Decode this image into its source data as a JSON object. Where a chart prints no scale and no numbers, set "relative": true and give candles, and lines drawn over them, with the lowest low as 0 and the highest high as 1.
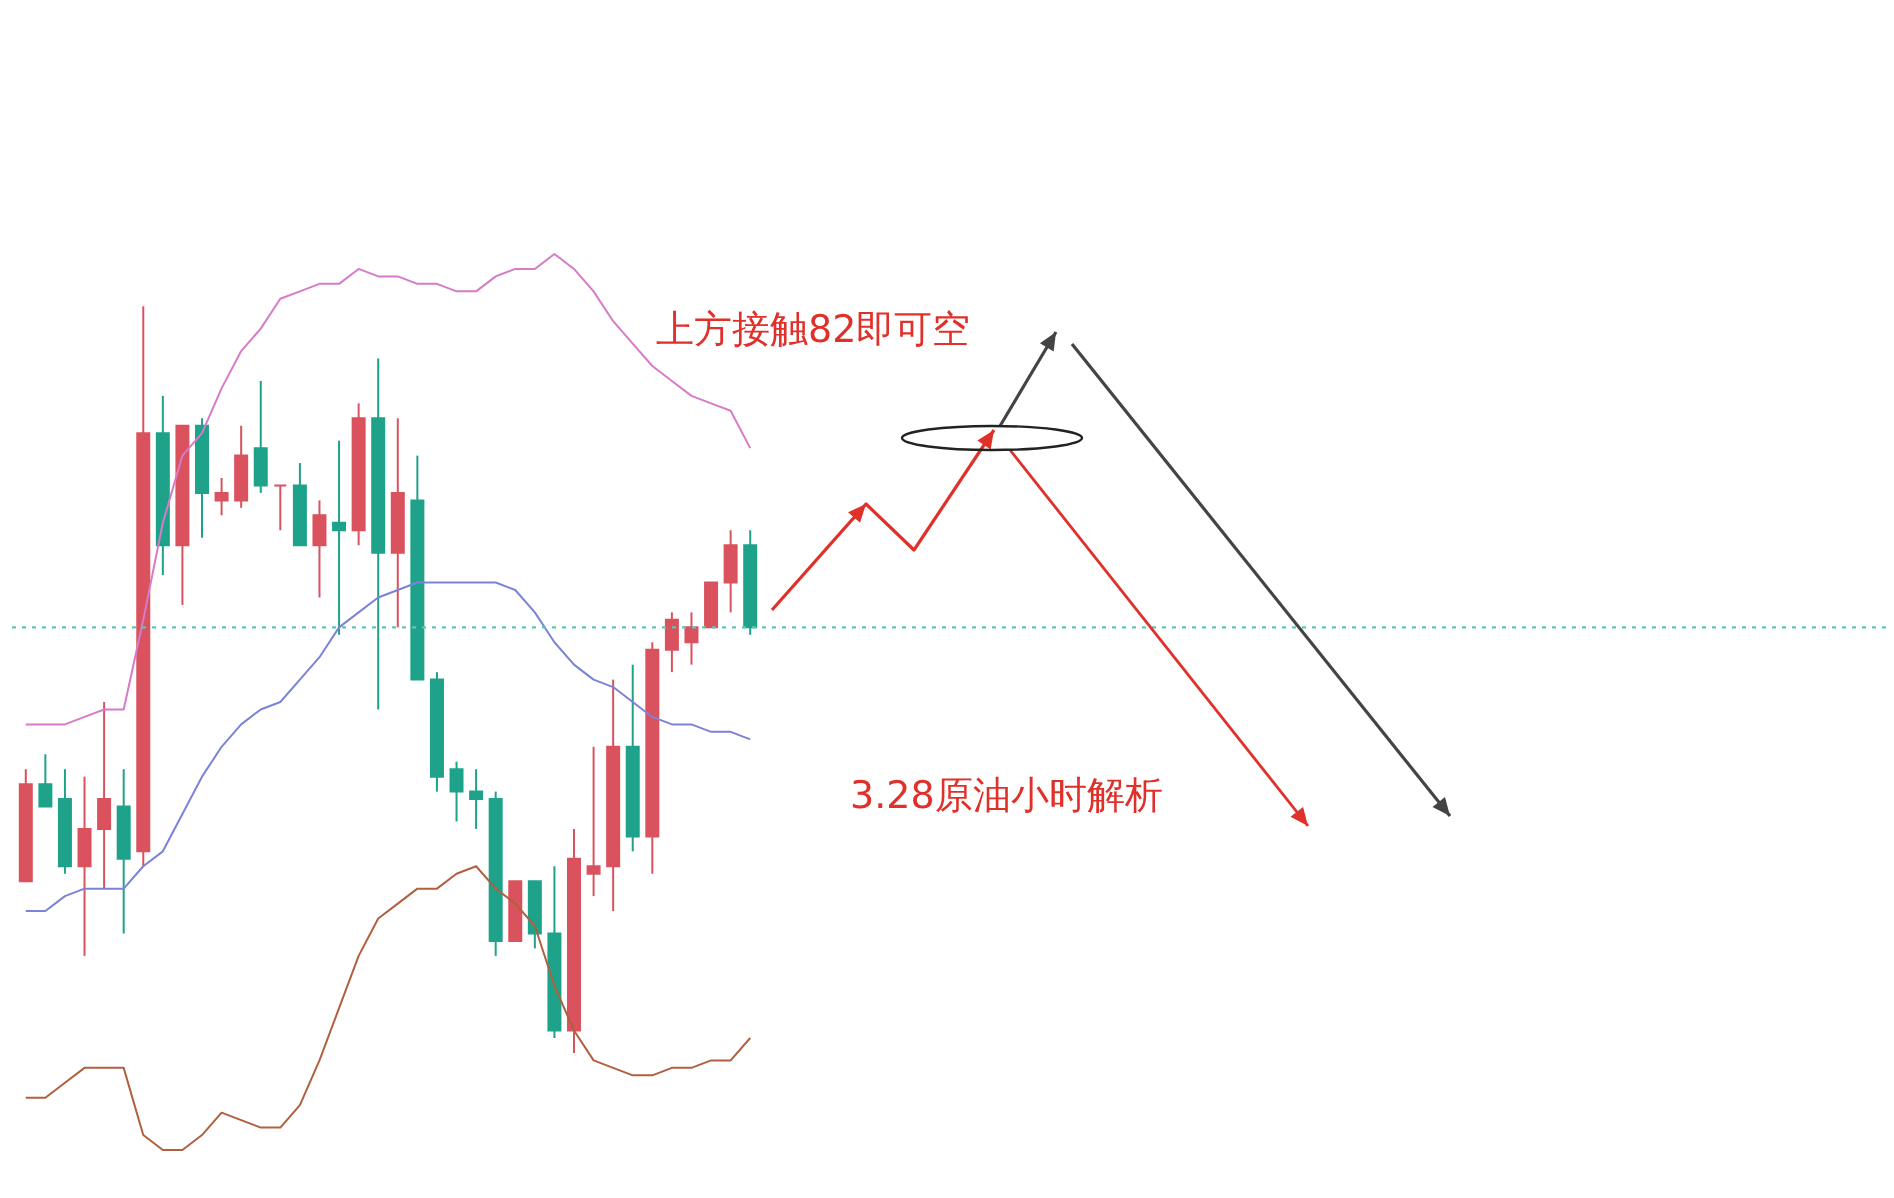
{
  "chart_data": {
    "type": "candlestick",
    "relative": true,
    "annotations": [
      "上方接触82即可空",
      "3.28原油小时解析"
    ],
    "categories": [
      null,
      null,
      null,
      null,
      null,
      null,
      null,
      null,
      null,
      null,
      null,
      null,
      null,
      null,
      null,
      null,
      null,
      null,
      null,
      null,
      null,
      null,
      null,
      null,
      null,
      null,
      null,
      null,
      null,
      null,
      null,
      null,
      null,
      null,
      null,
      null,
      null,
      null
    ],
    "ohlc": [
      [
        0.23,
        0.38,
        0.23,
        0.36
      ],
      [
        0.36,
        0.4,
        0.33,
        0.33
      ],
      [
        0.34,
        0.38,
        0.24,
        0.25
      ],
      [
        0.25,
        0.37,
        0.13,
        0.3
      ],
      [
        0.3,
        0.47,
        0.22,
        0.34
      ],
      [
        0.33,
        0.38,
        0.16,
        0.26
      ],
      [
        0.27,
        1,
        0.25,
        0.83
      ],
      [
        0.83,
        0.88,
        0.64,
        0.68
      ],
      [
        0.68,
        0.84,
        0.6,
        0.84
      ],
      [
        0.84,
        0.85,
        0.69,
        0.75
      ],
      [
        0.74,
        0.77,
        0.72,
        0.75
      ],
      [
        0.74,
        0.84,
        0.73,
        0.8
      ],
      [
        0.81,
        0.9,
        0.75,
        0.76
      ],
      [
        0.76,
        0.76,
        0.7,
        0.76
      ],
      [
        0.76,
        0.79,
        0.68,
        0.68
      ],
      [
        0.68,
        0.74,
        0.61,
        0.72
      ],
      [
        0.71,
        0.82,
        0.56,
        0.7
      ],
      [
        0.7,
        0.87,
        0.68,
        0.85
      ],
      [
        0.85,
        0.93,
        0.46,
        0.67
      ],
      [
        0.67,
        0.85,
        0.57,
        0.75
      ],
      [
        0.74,
        0.8,
        0.5,
        0.5
      ],
      [
        0.5,
        0.51,
        0.35,
        0.37
      ],
      [
        0.38,
        0.39,
        0.31,
        0.35
      ],
      [
        0.35,
        0.38,
        0.3,
        0.34
      ],
      [
        0.34,
        0.35,
        0.13,
        0.15
      ],
      [
        0.15,
        0.23,
        0.15,
        0.23
      ],
      [
        0.23,
        0.23,
        0.14,
        0.16
      ],
      [
        0.16,
        0.25,
        0.02,
        0.03
      ],
      [
        0.03,
        0.3,
        0,
        0.26
      ],
      [
        0.24,
        0.41,
        0.21,
        0.25
      ],
      [
        0.25,
        0.5,
        0.19,
        0.41
      ],
      [
        0.41,
        0.52,
        0.27,
        0.29
      ],
      [
        0.29,
        0.55,
        0.24,
        0.54
      ],
      [
        0.54,
        0.59,
        0.51,
        0.58
      ],
      [
        0.55,
        0.59,
        0.52,
        0.57
      ],
      [
        0.57,
        0.63,
        0.57,
        0.63
      ],
      [
        0.63,
        0.7,
        0.59,
        0.68
      ],
      [
        0.68,
        0.7,
        0.56,
        0.57
      ]
    ],
    "colors": [
      "#d9525e",
      "#1ea28a",
      "#1ea28a",
      "#d9525e",
      "#d9525e",
      "#1ea28a",
      "#d9525e",
      "#1ea28a",
      "#d9525e",
      "#1ea28a",
      "#d9525e",
      "#d9525e",
      "#1ea28a",
      "#d9525e",
      "#1ea28a",
      "#d9525e",
      "#1ea28a",
      "#d9525e",
      "#1ea28a",
      "#d9525e",
      "#1ea28a",
      "#1ea28a",
      "#1ea28a",
      "#1ea28a",
      "#1ea28a",
      "#d9525e",
      "#1ea28a",
      "#1ea28a",
      "#d9525e",
      "#d9525e",
      "#d9525e",
      "#1ea28a",
      "#d9525e",
      "#d9525e",
      "#d9525e",
      "#d9525e",
      "#d9525e",
      "#1ea28a"
    ],
    "series": [
      {
        "type": "line",
        "color": "#d67bc8",
        "values": [
          0.44,
          0.44,
          0.44,
          0.45,
          0.46,
          0.46,
          0.58,
          0.71,
          0.8,
          0.83,
          0.89,
          0.94,
          0.97,
          1.01,
          1.02,
          1.03,
          1.03,
          1.05,
          1.04,
          1.04,
          1.03,
          1.03,
          1.02,
          1.02,
          1.04,
          1.05,
          1.05,
          1.07,
          1.05,
          1.02,
          0.98,
          0.95,
          0.92,
          0.9,
          0.88,
          0.87,
          0.86,
          0.81
        ]
      },
      {
        "type": "line",
        "color": "#7b83d6",
        "values": [
          0.19,
          0.19,
          0.21,
          0.22,
          0.22,
          0.22,
          0.25,
          0.27,
          0.32,
          0.37,
          0.41,
          0.44,
          0.46,
          0.47,
          0.5,
          0.53,
          0.57,
          0.59,
          0.61,
          0.62,
          0.63,
          0.63,
          0.63,
          0.63,
          0.63,
          0.62,
          0.59,
          0.55,
          0.52,
          0.5,
          0.49,
          0.47,
          0.45,
          0.44,
          0.44,
          0.43,
          0.43,
          0.42
        ]
      },
      {
        "type": "line",
        "color": "#b0603f",
        "values": [
          -0.06,
          -0.06,
          -0.04,
          -0.02,
          -0.02,
          -0.02,
          -0.11,
          -0.13,
          -0.13,
          -0.11,
          -0.08,
          -0.09,
          -0.1,
          -0.1,
          -0.07,
          -0.01,
          0.06,
          0.13,
          0.18,
          0.2,
          0.22,
          0.22,
          0.24,
          0.25,
          0.22,
          0.2,
          0.17,
          0.09,
          0.03,
          -0.01,
          -0.02,
          -0.03,
          -0.03,
          -0.02,
          -0.02,
          -0.01,
          -0.01,
          0.02
        ]
      }
    ],
    "ref_lines": [
      {
        "axis": "y",
        "value": 0.57,
        "color": "#5cc7b6",
        "line_style": "dotted"
      }
    ]
  }
}
